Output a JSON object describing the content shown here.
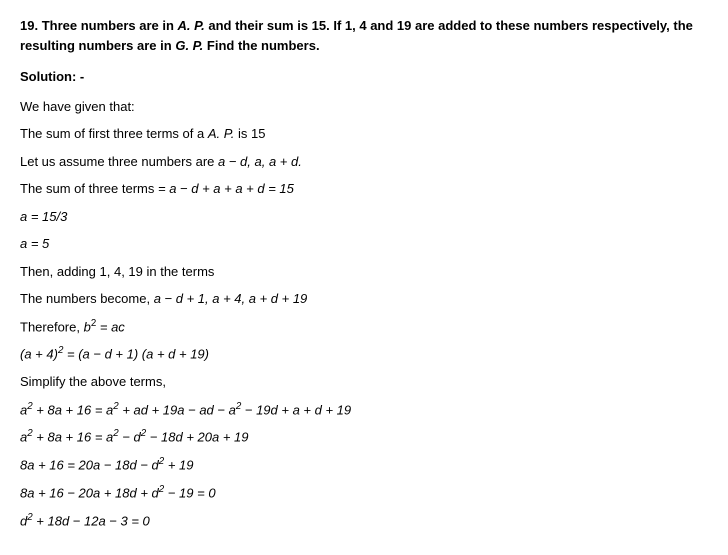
{
  "question": {
    "number": "19.",
    "text_part1": "Three numbers are in ",
    "ap": "A. P.",
    "text_part2": " and their sum is 15. If 1, 4 and 19 are added to these numbers respectively, the resulting numbers are in ",
    "gp": "G. P.",
    "text_part3": " Find the numbers."
  },
  "solution_label": "Solution: -",
  "lines": {
    "l1": "We have given that:",
    "l2_pre": "The sum of first three terms of a ",
    "l2_ap": "A. P.",
    "l2_post": " is 15",
    "l3_pre": "Let us assume three numbers are ",
    "l3_math": "a − d, a, a + d.",
    "l4_pre": "The sum of three terms ",
    "l4_math": "=  a − d + a + a + d  =  15",
    "l5": "a  =  15/3",
    "l6": "a  =  5",
    "l7": "Then, adding 1, 4, 19 in the terms",
    "l8_pre": "The numbers become, ",
    "l8_math": "a − d + 1, a + 4, a + d + 19",
    "l9_pre": "Therefore, ",
    "l9_b": "b",
    "l9_sup": "2",
    "l9_post": "  =  ac",
    "l10_open": "(a + 4)",
    "l10_sup": "2",
    "l10_post": "  =  (a − d + 1) (a + d + 19)",
    "l11": "Simplify the above terms,",
    "l12_a": "a",
    "l12_s1": "2",
    "l12_p1": " + 8a + 16  =  a",
    "l12_s2": "2",
    "l12_p2": " + ad + 19a − ad − a",
    "l12_s3": "2",
    "l12_p3": " − 19d + a + d + 19",
    "l13_a": "a",
    "l13_s1": "2",
    "l13_p1": " + 8a + 16  =  a",
    "l13_s2": "2",
    "l13_p2": " − d",
    "l13_s3": "2",
    "l13_p3": " − 18d + 20a + 19",
    "l14_p1": "8a + 16  =  20a − 18d − d",
    "l14_s1": "2",
    "l14_p2": " + 19",
    "l15_p1": "8a + 16 − 20a + 18d + d",
    "l15_s1": "2",
    "l15_p2": " − 19  =  0",
    "l16_d": "d",
    "l16_s1": "2",
    "l16_p1": " + 18d − 12a − 3  =  0"
  }
}
